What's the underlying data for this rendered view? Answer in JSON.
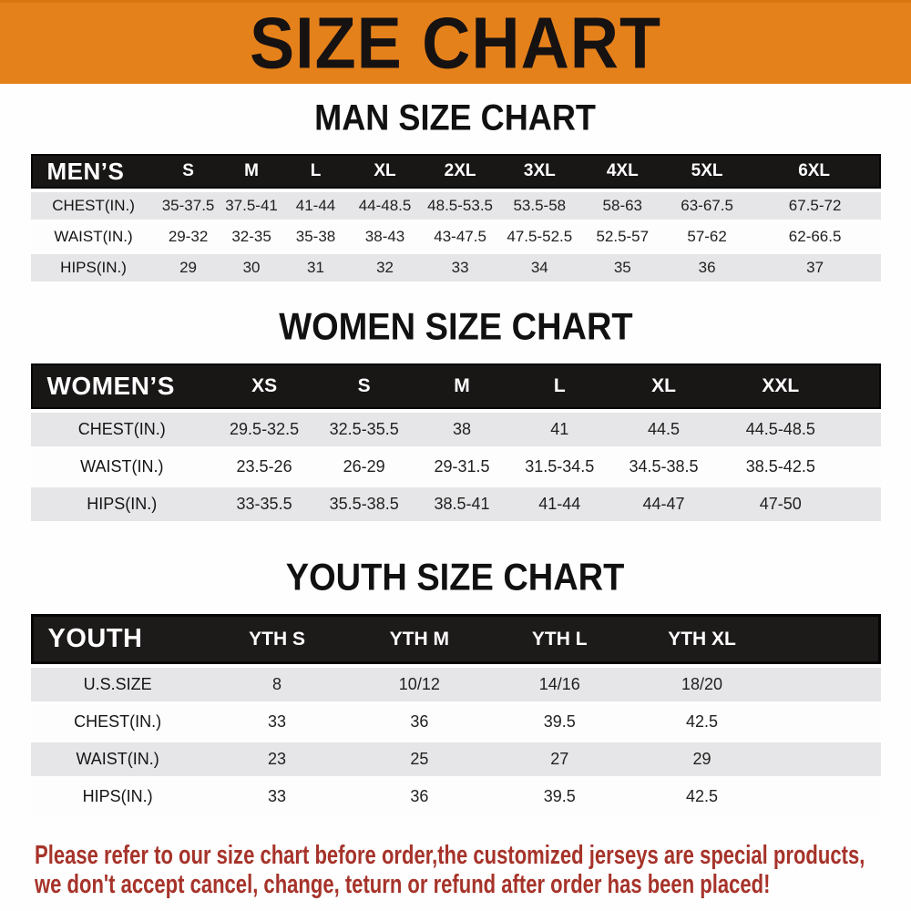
{
  "banner": {
    "title": "SIZE CHART"
  },
  "colors": {
    "banner-orange": "#e5811b",
    "header-black": "#191616",
    "row-gray": "#e6e5e7",
    "disclaimer-red": "#a6332a"
  },
  "sections": {
    "men": {
      "heading": "MAN SIZE CHART",
      "table": {
        "header": [
          "MEN’S",
          "S",
          "M",
          "L",
          "XL",
          "2XL",
          "3XL",
          "4XL",
          "5XL",
          "6XL"
        ],
        "rows": [
          [
            "CHEST(IN.)",
            "35-37.5",
            "37.5-41",
            "41-44",
            "44-48.5",
            "48.5-53.5",
            "53.5-58",
            "58-63",
            "63-67.5",
            "67.5-72"
          ],
          [
            "WAIST(IN.)",
            "29-32",
            "32-35",
            "35-38",
            "38-43",
            "43-47.5",
            "47.5-52.5",
            "52.5-57",
            "57-62",
            "62-66.5"
          ],
          [
            "HIPS(IN.)",
            "29",
            "30",
            "31",
            "32",
            "33",
            "34",
            "35",
            "36",
            "37"
          ]
        ]
      }
    },
    "women": {
      "heading": "WOMEN SIZE CHART",
      "table": {
        "header": [
          "WOMEN’S",
          "XS",
          "S",
          "M",
          "L",
          "XL",
          "XXL"
        ],
        "rows": [
          [
            "CHEST(IN.)",
            "29.5-32.5",
            "32.5-35.5",
            "38",
            "41",
            "44.5",
            "44.5-48.5"
          ],
          [
            "WAIST(IN.)",
            "23.5-26",
            "26-29",
            "29-31.5",
            "31.5-34.5",
            "34.5-38.5",
            "38.5-42.5"
          ],
          [
            "HIPS(IN.)",
            "33-35.5",
            "35.5-38.5",
            "38.5-41",
            "41-44",
            "44-47",
            "47-50"
          ]
        ]
      }
    },
    "youth": {
      "heading": "YOUTH SIZE CHART",
      "table": {
        "header": [
          "YOUTH",
          "YTH S",
          "YTH M",
          "YTH L",
          "YTH XL"
        ],
        "rows": [
          [
            "U.S.SIZE",
            "8",
            "10/12",
            "14/16",
            "18/20"
          ],
          [
            "CHEST(IN.)",
            "33",
            "36",
            "39.5",
            "42.5"
          ],
          [
            "WAIST(IN.)",
            "23",
            "25",
            "27",
            "29"
          ],
          [
            "HIPS(IN.)",
            "33",
            "36",
            "39.5",
            "42.5"
          ]
        ]
      }
    }
  },
  "disclaimer": {
    "line1": "Please refer to our size chart before order,the customized jerseys are special products,",
    "line2": "we don't accept cancel, change, teturn or refund after order has been placed!"
  }
}
